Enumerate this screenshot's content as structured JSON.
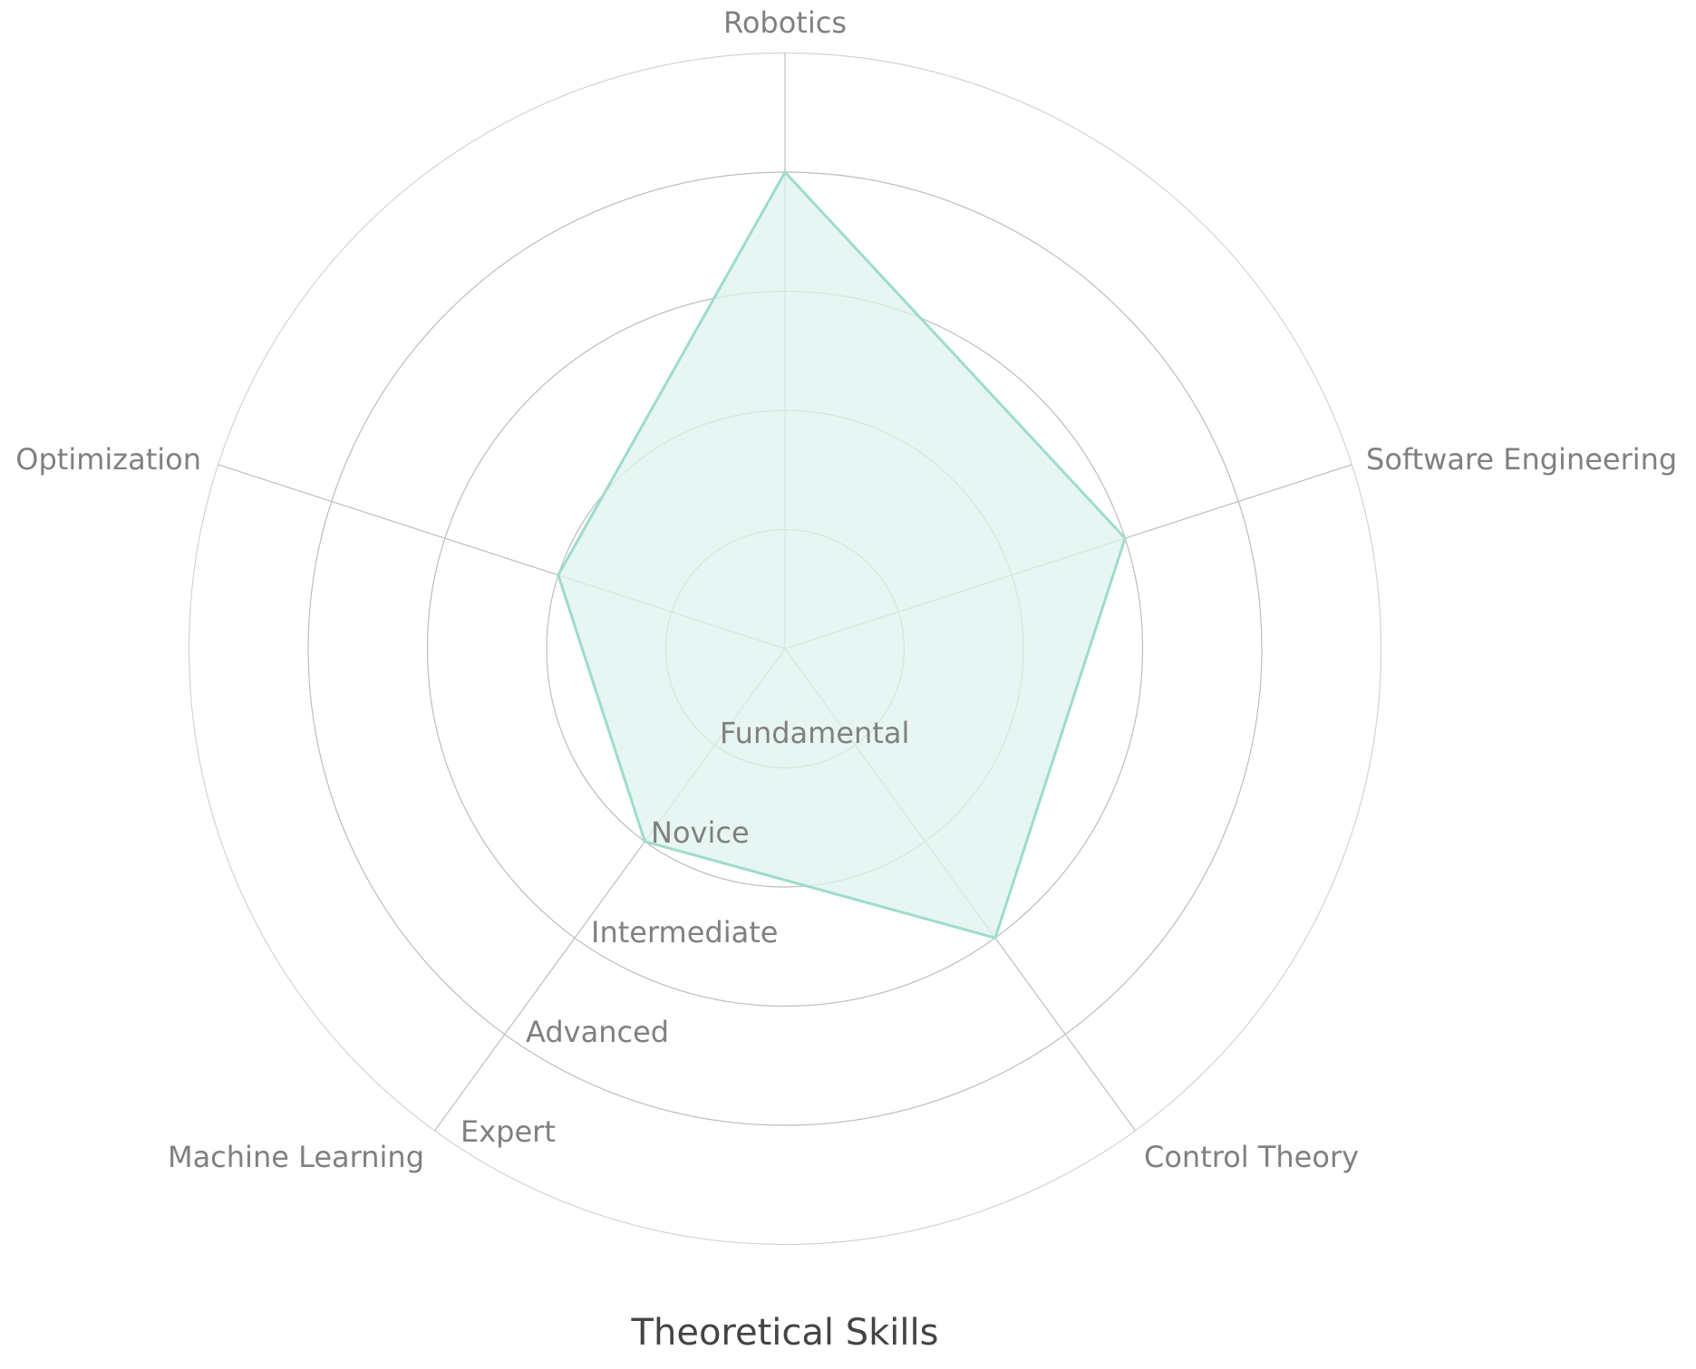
{
  "chart_data": {
    "type": "radar",
    "title": "Theoretical Skills",
    "axes": [
      "Robotics",
      "Software Engineering",
      "Control Theory",
      "Machine Learning",
      "Optimization"
    ],
    "levels": [
      "Fundamental",
      "Novice",
      "Intermediate",
      "Advanced",
      "Expert"
    ],
    "rmax": 5,
    "grid": true,
    "series": [
      {
        "values": [
          4,
          3,
          3,
          2,
          2
        ]
      }
    ],
    "colors": {
      "series_line": "#9ddccc",
      "series_fill": "#dff3ee",
      "grid": "#bdbdbd",
      "label": "#808080",
      "title": "#444444"
    }
  }
}
